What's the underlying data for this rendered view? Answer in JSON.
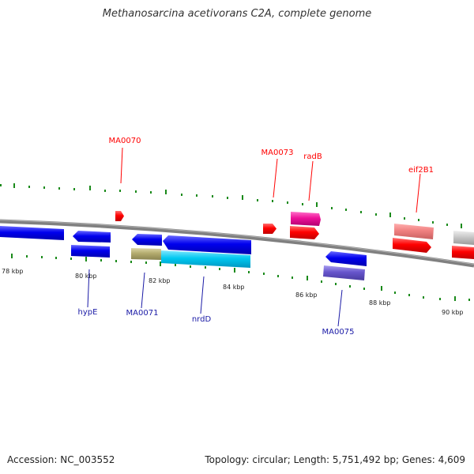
{
  "title": "Methanosarcina acetivorans C2A, complete genome",
  "accession_label": "Accession: NC_003552",
  "summary": "Topology: circular; Length: 5,751,492 bp; Genes: 4,609",
  "scale_labels": [
    "78 kbp",
    "80 kbp",
    "82 kbp",
    "84 kbp",
    "86 kbp",
    "88 kbp",
    "90 kbp"
  ],
  "genes_top": [
    {
      "label": "MA0070",
      "color": "#ff0000"
    },
    {
      "label": "MA0073",
      "color": "#ff0000"
    },
    {
      "label": "radB",
      "color": "#ff0000"
    },
    {
      "label": "eif2B1",
      "color": "#ff0000"
    }
  ],
  "genes_bottom": [
    {
      "label": "hypE",
      "color": "#1a1aa6"
    },
    {
      "label": "MA0071",
      "color": "#1a1aa6"
    },
    {
      "label": "nrdD",
      "color": "#1a1aa6"
    },
    {
      "label": "MA0075",
      "color": "#1a1aa6"
    }
  ],
  "colors": {
    "forward_strand": "#ff0000",
    "reverse_strand": "#0000ee",
    "pink": "#ee1199",
    "salmon": "#f08080",
    "olive": "#b3ab6e",
    "cyan": "#00c8f0",
    "slate": "#6655cc",
    "grey": "#c8c8c8",
    "ticks": "#1a8a1a",
    "backbone": "#808080"
  }
}
